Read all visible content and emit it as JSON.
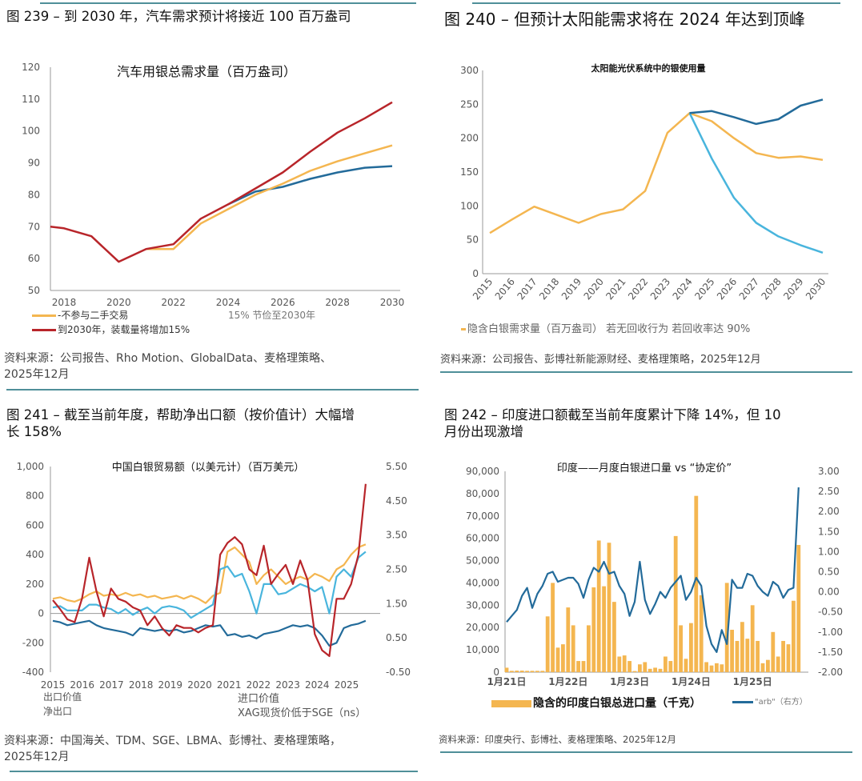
{
  "panels": {
    "p239": {
      "title": "图 239 – 到 2030 年，汽车需求预计将接近 100 百万盎司",
      "source_line1": "资料来源：公司报告、Rho Motion、GlobalData、麦格理策略、",
      "source_line2": "2025年12月"
    },
    "p240": {
      "title": "图 240 – 但预计太阳能需求将在 2024 年达到顶峰",
      "source": "资料来源：公司报告、彭博社新能源财经、麦格理策略，2025年12月"
    },
    "p241": {
      "title_line1": "图 241 – 截至当前年度，帮助净出口额（按价值计）大幅增",
      "title_line2": "长 158%",
      "source_line1": "资料来源：中国海关、TDM、SGE、LBMA、彭博社、麦格理策略，",
      "source_line2": "2025年12月"
    },
    "p242": {
      "title_line1": "图 242 – 印度进口额截至当前年度累计下降 14%，但 10",
      "title_line2": "月份出现激增",
      "source": "资料来源：印度央行、彭博社、麦格理策略、2025年12月"
    }
  },
  "chart_data": [
    {
      "type": "line",
      "title": "汽车用银总需求量（百万盎司）",
      "xlim": [
        2017.5,
        2030
      ],
      "ylim": [
        50,
        120
      ],
      "xticks": [
        "2018",
        "2020",
        "2022",
        "2024",
        "2026",
        "2028",
        "2030"
      ],
      "yticks": [
        "50",
        "60",
        "70",
        "80",
        "90",
        "100",
        "110",
        "120"
      ],
      "annotation": "15% 节俭至2030年",
      "series": [
        {
          "name": "到2030年，装载量将增加15%",
          "color": "#b8252a",
          "x": [
            2017.5,
            2018,
            2019,
            2020,
            2021,
            2022,
            2023,
            2024,
            2025,
            2026,
            2027,
            2028,
            2029,
            2030
          ],
          "values": [
            70,
            69.5,
            67,
            59,
            63,
            64.5,
            72.5,
            77,
            82,
            87,
            93.5,
            99.5,
            104,
            109
          ]
        },
        {
          "name": "-不参与二手交易",
          "color": "#f4b650",
          "x": [
            2021,
            2022,
            2023,
            2024,
            2025,
            2026,
            2027,
            2028,
            2029,
            2030
          ],
          "values": [
            63,
            63,
            71,
            75.5,
            80,
            83.5,
            87.5,
            90.5,
            93,
            95.5
          ]
        },
        {
          "name": "15% 节俭至2030年",
          "color": "#236b9a",
          "x": [
            2024,
            2025,
            2026,
            2027,
            2028,
            2029,
            2030
          ],
          "values": [
            77,
            81,
            82.5,
            85,
            87,
            88.5,
            89
          ]
        }
      ]
    },
    {
      "type": "line",
      "title": "太阳能光伏系统中的银使用量",
      "xlim": [
        2015,
        2030
      ],
      "ylim": [
        0,
        300
      ],
      "xticks": [
        "2015",
        "2016",
        "2017",
        "2018",
        "2019",
        "2020",
        "2021",
        "2022",
        "2023",
        "2024",
        "2025",
        "2026",
        "2027",
        "2028",
        "2029",
        "2030"
      ],
      "yticks": [
        "0",
        "50",
        "100",
        "150",
        "200",
        "250",
        "300"
      ],
      "legend": "隐含白银需求量（百万盎司） 若无回收行为 若回收率达 90%",
      "series": [
        {
          "name": "隐含白银需求量（百万盎司）",
          "color": "#f4b650",
          "x": [
            2015,
            2016,
            2017,
            2018,
            2019,
            2020,
            2021,
            2022,
            2023,
            2024,
            2025,
            2026,
            2027,
            2028,
            2029,
            2030
          ],
          "values": [
            60,
            80,
            99,
            87,
            75,
            88,
            95,
            122,
            208,
            237,
            225,
            200,
            178,
            171,
            173,
            168
          ]
        },
        {
          "name": "若回收率达 90%",
          "color": "#49b5dd",
          "x": [
            2024,
            2025,
            2026,
            2027,
            2028,
            2029,
            2030
          ],
          "values": [
            237,
            170,
            112,
            75,
            55,
            42,
            31
          ]
        },
        {
          "name": "若无回收行为",
          "color": "#236b9a",
          "x": [
            2024,
            2025,
            2026,
            2027,
            2028,
            2029,
            2030
          ],
          "values": [
            237,
            240,
            231,
            221,
            228,
            248,
            257
          ]
        }
      ]
    },
    {
      "type": "line",
      "title": "中国白银贸易额（以美元计）（百万美元）",
      "xlim": [
        2015,
        2025.9
      ],
      "ylim": [
        -400,
        1000
      ],
      "y2lim": [
        -0.5,
        5.5
      ],
      "xticks": [
        "2015",
        "2016",
        "2017",
        "2018",
        "2019",
        "2020",
        "2021",
        "2022",
        "2023",
        "2024",
        "2025"
      ],
      "yticks": [
        "-400",
        "-200",
        "0",
        "200",
        "400",
        "600",
        "800",
        "1,000"
      ],
      "y2ticks": [
        "-0.50",
        "0.50",
        "1.50",
        "2.50",
        "3.50",
        "4.50",
        "5.50"
      ],
      "series": [
        {
          "name": "出口价值",
          "axis": "left",
          "color": "#f4b650",
          "values": [
            100,
            110,
            90,
            80,
            100,
            130,
            150,
            120,
            130,
            120,
            140,
            120,
            130,
            110,
            120,
            100,
            110,
            120,
            100,
            120,
            100,
            70,
            120,
            140,
            420,
            450,
            400,
            350,
            200,
            260,
            300,
            250,
            200,
            230,
            250,
            230,
            270,
            250,
            220,
            300,
            330,
            400,
            450,
            470
          ]
        },
        {
          "name": "进口价值",
          "axis": "left",
          "color": "#49b5dd",
          "values": [
            40,
            50,
            20,
            20,
            20,
            60,
            60,
            40,
            30,
            0,
            30,
            -10,
            20,
            40,
            0,
            40,
            50,
            40,
            20,
            -30,
            0,
            30,
            60,
            300,
            320,
            250,
            270,
            150,
            0,
            200,
            200,
            130,
            140,
            170,
            200,
            180,
            150,
            180,
            0,
            250,
            300,
            250,
            380,
            420
          ]
        },
        {
          "name": "净出口",
          "axis": "left",
          "color": "#236b9a",
          "values": [
            -50,
            -60,
            -80,
            -70,
            -60,
            -50,
            -80,
            -100,
            -110,
            -120,
            -130,
            -150,
            -100,
            -110,
            -120,
            -110,
            -120,
            -110,
            -130,
            -120,
            -100,
            -80,
            -90,
            -80,
            -150,
            -140,
            -160,
            -150,
            -170,
            -140,
            -130,
            -120,
            -100,
            -80,
            -90,
            -80,
            -100,
            -150,
            -220,
            -200,
            -100,
            -80,
            -70,
            -50
          ]
        },
        {
          "name": "XAG现货价低于SGE（ns）",
          "axis": "right",
          "color": "#b8252a",
          "values": [
            1.6,
            1.34,
            1.04,
            0.96,
            1.64,
            2.84,
            1.86,
            1.13,
            1.94,
            1.64,
            1.56,
            1.39,
            1.3,
            0.87,
            1.13,
            0.79,
            0.57,
            0.87,
            0.79,
            0.79,
            0.66,
            0.79,
            0.87,
            2.93,
            3.27,
            3.44,
            3.23,
            2.5,
            2.33,
            3.19,
            2.07,
            2.37,
            2.63,
            2.07,
            2.76,
            2.2,
            0.61,
            0.14,
            -0.03,
            1.64,
            1.64,
            2.07,
            2.93,
            4.99
          ]
        }
      ]
    },
    {
      "type": "bar+line",
      "title": "印度——月度白银进口量 vs “协定价”",
      "ylim": [
        0,
        90000
      ],
      "y2lim": [
        -2,
        3
      ],
      "xticks": [
        "1月21日",
        "1月22日",
        "1月23日",
        "1月24日",
        "1月25日"
      ],
      "yticks": [
        "0",
        "10,000",
        "20,000",
        "30,000",
        "40,000",
        "50,000",
        "60,000",
        "70,000",
        "80,000",
        "90,000"
      ],
      "y2ticks": [
        "-2.00",
        "-1.50",
        "-1.00",
        "-0.50",
        "0.00",
        "0.50",
        "1.00",
        "1.50",
        "2.00",
        "2.50",
        "3.00"
      ],
      "bars": {
        "name": "隐含的印度白银总进口量（千克）",
        "color": "#f4b650",
        "values": [
          2000,
          600,
          700,
          700,
          600,
          600,
          600,
          600,
          25000,
          40000,
          11000,
          12500,
          29000,
          21000,
          5000,
          5000,
          21000,
          38000,
          59000,
          38500,
          58000,
          31500,
          7000,
          7500,
          5000,
          500,
          3500,
          4500,
          1500,
          2000,
          1500,
          7000,
          5000,
          61000,
          21000,
          6000,
          22000,
          79000,
          34500,
          4500,
          3000,
          4000,
          3500,
          40000,
          19000,
          14000,
          22500,
          15000,
          30000,
          14000,
          4000,
          5500,
          18000,
          7000,
          14000,
          12500,
          32000,
          57000
        ]
      },
      "line": {
        "name": "\"arb\"（右方）",
        "color": "#236b9a",
        "values": [
          -0.75,
          -0.6,
          -0.45,
          -0.1,
          0.1,
          -0.4,
          -0.05,
          0.15,
          0.45,
          0.5,
          0.25,
          0.3,
          0.35,
          0.35,
          0.2,
          -0.15,
          0.3,
          0.6,
          0.5,
          0.75,
          0.45,
          0.5,
          0.15,
          -0.05,
          -0.6,
          -0.25,
          0.75,
          -0.2,
          -0.55,
          -0.3,
          0,
          -0.15,
          0.1,
          0.25,
          0.4,
          -0.2,
          0,
          0.35,
          0.15,
          -0.85,
          -1.3,
          -1.5,
          -0.95,
          -1.3,
          0.3,
          0.1,
          0.1,
          0.45,
          0.4,
          0.15,
          0,
          -0.1,
          0.25,
          0.15,
          -0.15,
          0.05,
          0.1,
          2.6
        ]
      }
    }
  ]
}
